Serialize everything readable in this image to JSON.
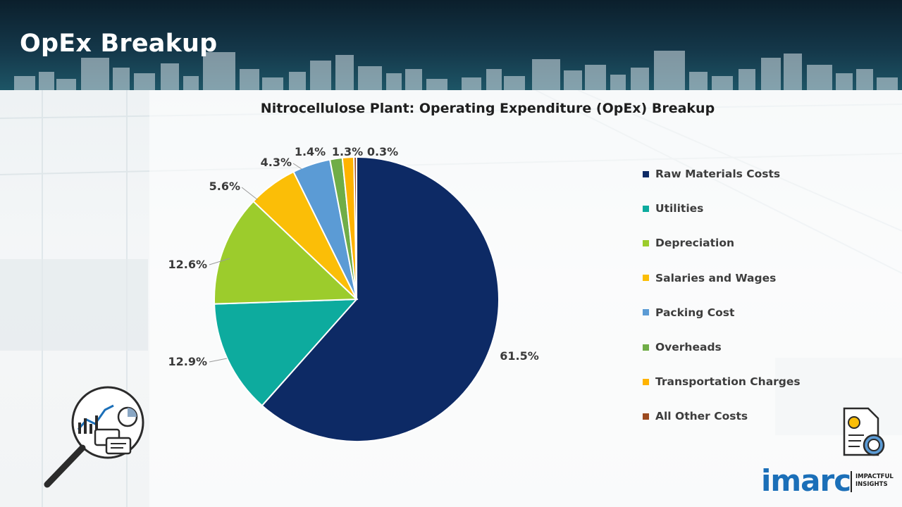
{
  "page": {
    "title": "OpEx Breakup"
  },
  "chart_data": {
    "type": "pie",
    "title": "Nitrocellulose Plant: Operating Expenditure (OpEx) Breakup",
    "categories": [
      "Raw Materials Costs",
      "Utilities",
      "Depreciation",
      "Salaries and Wages",
      "Packing Cost",
      "Overheads",
      "Transportation Charges",
      "All Other Costs"
    ],
    "values": [
      61.5,
      12.9,
      12.6,
      5.6,
      4.3,
      1.4,
      1.3,
      0.3
    ],
    "value_labels": [
      "61.5%",
      "12.9%",
      "12.6%",
      "5.6%",
      "4.3%",
      "1.4%",
      "1.3%",
      "0.3%"
    ],
    "colors": [
      "#0d2a65",
      "#0dab9e",
      "#9ccc2c",
      "#fbbe07",
      "#5b9bd5",
      "#70ad47",
      "#ffb300",
      "#9c4a1f"
    ],
    "legend_position": "right"
  },
  "branding": {
    "logo_text": "imarc",
    "tagline_line1": "IMPACTFUL",
    "tagline_line2": "INSIGHTS"
  },
  "icons": [
    "magnifier-analytics-icon",
    "cost-document-icon"
  ]
}
